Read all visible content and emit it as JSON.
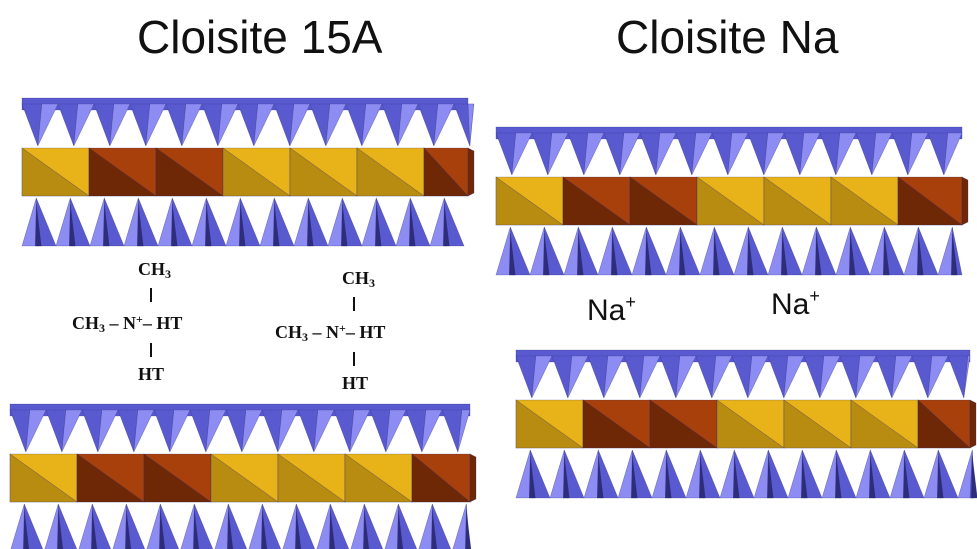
{
  "titles": {
    "left": "Cloisite 15A",
    "right": "Cloisite Na"
  },
  "molecule": {
    "methyl": "CH",
    "methyl_sub": "3",
    "nitrogen": "N",
    "charge": "+",
    "tail": "HT"
  },
  "ions": {
    "symbol": "Na",
    "charge": "+"
  },
  "colors": {
    "tetra_dark": "#5a5ad0",
    "tetra_light": "#8c8cf2",
    "tetra_shadow": "#2d2d7a",
    "octa_gold": "#e8b318",
    "octa_gold_dark": "#b88c10",
    "octa_brown": "#a8400c",
    "octa_brown_dark": "#6e2806"
  }
}
